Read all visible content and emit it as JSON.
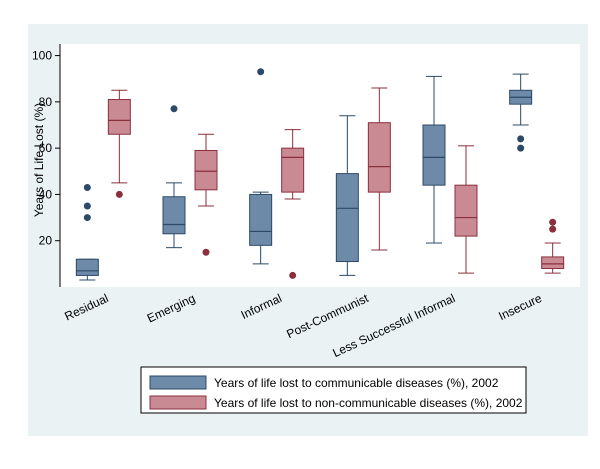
{
  "chart_data": {
    "type": "box",
    "ylabel": "Years of Life Lost (%)",
    "ylim": [
      0,
      105
    ],
    "yticks": [
      20,
      40,
      60,
      80,
      100
    ],
    "categories": [
      "Residual",
      "Emerging",
      "Informal",
      "Post-Communist",
      "Less Successful Informal",
      "Insecure"
    ],
    "series": [
      {
        "name": "Years of life lost to communicable diseases (%), 2002",
        "color": "#6d8ba8",
        "stroke": "#2c4a68",
        "boxes": [
          {
            "whisker_low": 3,
            "q1": 5,
            "median": 7,
            "q3": 12,
            "whisker_high": 12,
            "outliers": [
              30,
              35,
              43
            ]
          },
          {
            "whisker_low": 17,
            "q1": 23,
            "median": 27,
            "q3": 39,
            "whisker_high": 45,
            "outliers": [
              77
            ]
          },
          {
            "whisker_low": 10,
            "q1": 18,
            "median": 24,
            "q3": 40,
            "whisker_high": 41,
            "outliers": [
              93
            ]
          },
          {
            "whisker_low": 5,
            "q1": 11,
            "median": 34,
            "q3": 49,
            "whisker_high": 74,
            "outliers": []
          },
          {
            "whisker_low": 19,
            "q1": 44,
            "median": 56,
            "q3": 70,
            "whisker_high": 91,
            "outliers": []
          },
          {
            "whisker_low": 70,
            "q1": 79,
            "median": 82,
            "q3": 85,
            "whisker_high": 92,
            "outliers": [
              60,
              64
            ]
          }
        ]
      },
      {
        "name": "Years of life lost to non-communicable diseases (%), 2002",
        "color": "#c98a93",
        "stroke": "#8b2f3c",
        "boxes": [
          {
            "whisker_low": 45,
            "q1": 66,
            "median": 72,
            "q3": 81,
            "whisker_high": 85,
            "outliers": [
              40
            ]
          },
          {
            "whisker_low": 35,
            "q1": 42,
            "median": 50,
            "q3": 59,
            "whisker_high": 66,
            "outliers": [
              15
            ]
          },
          {
            "whisker_low": 38,
            "q1": 41,
            "median": 56,
            "q3": 60,
            "whisker_high": 68,
            "outliers": [
              5
            ]
          },
          {
            "whisker_low": 16,
            "q1": 41,
            "median": 52,
            "q3": 71,
            "whisker_high": 86,
            "outliers": []
          },
          {
            "whisker_low": 6,
            "q1": 22,
            "median": 30,
            "q3": 44,
            "whisker_high": 61,
            "outliers": []
          },
          {
            "whisker_low": 6,
            "q1": 8,
            "median": 10,
            "q3": 13,
            "whisker_high": 19,
            "outliers": [
              25,
              28
            ]
          }
        ]
      }
    ],
    "legend": "bottom",
    "grid": false
  }
}
